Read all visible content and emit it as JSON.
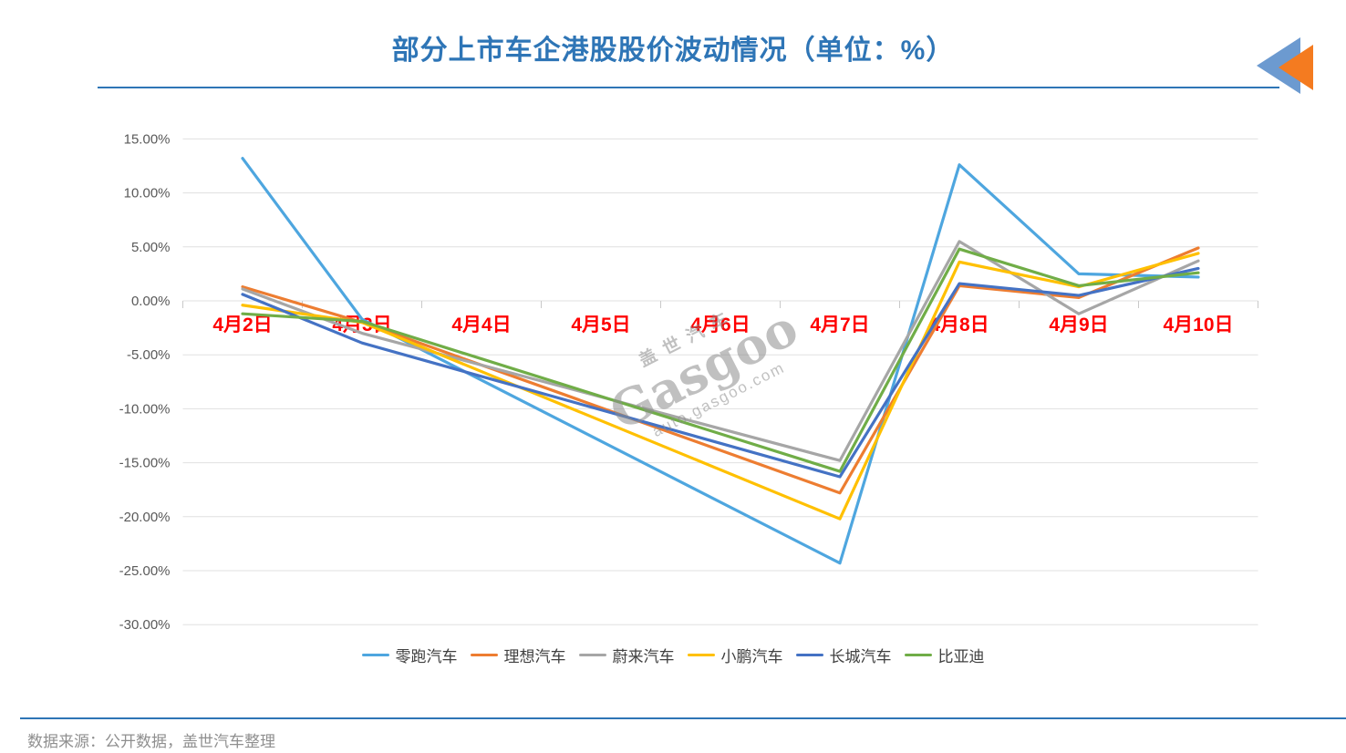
{
  "title": {
    "text": "部分上市车企港股股价波动情况（单位：%）",
    "color": "#2E75B6"
  },
  "logo": {
    "name": "gasgoo-logo",
    "blue": "#6C9AD0",
    "orange": "#F47B20"
  },
  "watermark": {
    "line1": "盖世汽车",
    "line2": "Gasgoo",
    "line3": "auto.gasgoo.com"
  },
  "footer": {
    "text": "数据来源：公开数据，盖世汽车整理"
  },
  "chart_data": {
    "type": "line",
    "title": "部分上市车企港股股价波动情况（单位：%）",
    "categories": [
      "4月2日",
      "4月3日",
      "4月4日",
      "4月5日",
      "4月6日",
      "4月7日",
      "4月8日",
      "4月9日",
      "4月10日"
    ],
    "x_label_color": "#FF0000",
    "y_label_color": "#595959",
    "grid": true,
    "grid_color": "#E0E0E0",
    "ylim": [
      -30,
      15
    ],
    "y_tick_step": 5,
    "y_tick_format": "percent_2dp",
    "legend_position": "bottom",
    "note": "no trading data on 4月4日-4月6日; lines connect straight from 4月3日 to 4月7日",
    "series": [
      {
        "name": "零跑汽车",
        "color": "#4EA6DF",
        "values": [
          13.2,
          -1.7,
          null,
          null,
          null,
          -24.3,
          12.6,
          2.5,
          2.2
        ]
      },
      {
        "name": "理想汽车",
        "color": "#ED7D31",
        "values": [
          1.3,
          -2.0,
          null,
          null,
          null,
          -17.8,
          1.4,
          0.3,
          4.9
        ]
      },
      {
        "name": "蔚来汽车",
        "color": "#A6A6A6",
        "values": [
          1.1,
          -3.0,
          null,
          null,
          null,
          -14.8,
          5.5,
          -1.2,
          3.7
        ]
      },
      {
        "name": "小鹏汽车",
        "color": "#FFC000",
        "values": [
          -0.4,
          -2.0,
          null,
          null,
          null,
          -20.2,
          3.6,
          1.3,
          4.4
        ]
      },
      {
        "name": "长城汽车",
        "color": "#4472C4",
        "values": [
          0.6,
          -3.9,
          null,
          null,
          null,
          -16.3,
          1.6,
          0.5,
          3.0
        ]
      },
      {
        "name": "比亚迪",
        "color": "#70AD47",
        "values": [
          -1.2,
          -1.9,
          null,
          null,
          null,
          -15.8,
          4.8,
          1.4,
          2.6
        ]
      }
    ]
  }
}
